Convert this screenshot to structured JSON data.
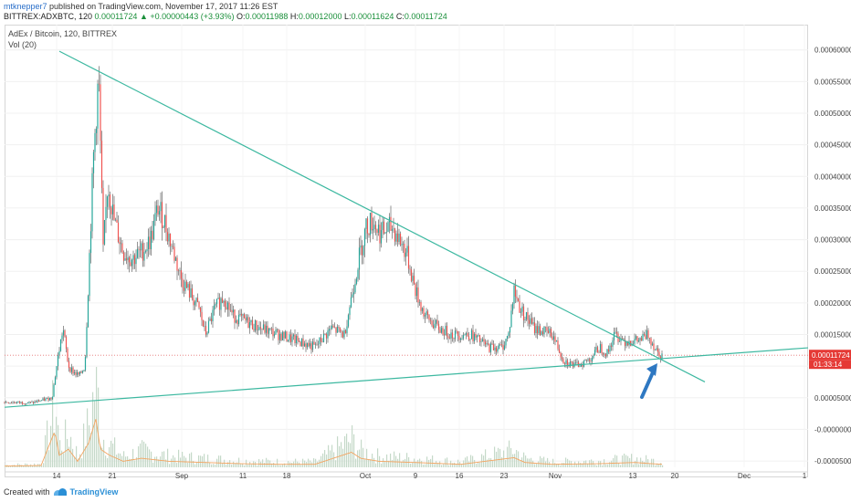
{
  "header": {
    "author": "mtknepper7",
    "published": "published on TradingView.com, November 17, 2017 11:26 EST",
    "symbol": "BITTREX:ADXBTC, 120",
    "last": "0.00011724",
    "change_arrow": "▲",
    "change": "+0.00000443 (+3.93%)",
    "o_label": "O:",
    "o_val": "0.00011988",
    "h_label": "H:",
    "h_val": "0.00012000",
    "l_label": "L:",
    "l_val": "0.00011624",
    "c_label": "C:",
    "c_val": "0.00011724"
  },
  "legend": {
    "title": "AdEx / Bitcoin, 120, BITTREX",
    "vol": "Vol (20)"
  },
  "footer": {
    "created_with": "Created with",
    "brand": "TradingView"
  },
  "colors": {
    "up": "#26a69a",
    "down": "#ef5350",
    "candle": "#4d4d4d",
    "trendline": "#3cb8a0",
    "price_line": "#e57373",
    "arrow": "#2e78c2",
    "volume": "#c5d9c9",
    "ma": "#f4a460"
  },
  "chart_data": {
    "type": "candlestick",
    "title": "AdEx / Bitcoin, 120, BITTREX",
    "x_ticks": [
      "14",
      "21",
      "Sep",
      "11",
      "18",
      "Oct",
      "9",
      "16",
      "23",
      "Nov",
      "13",
      "20",
      "Dec",
      "1"
    ],
    "y_ticks": [
      "0.00060000",
      "0.00055000",
      "0.00050000",
      "0.00045000",
      "0.00040000",
      "0.00035000",
      "0.00030000",
      "0.00025000",
      "0.00020000",
      "0.00015000",
      "0.00010000",
      "0.00005000",
      "-0.00000000",
      "-0.00005000"
    ],
    "ylim": [
      -6e-05,
      0.00064
    ],
    "last_price_label": "0.00011724",
    "countdown_label": "01:33:14",
    "price_path": [
      [
        0,
        4.3e-05
      ],
      [
        30,
        4.2e-05
      ],
      [
        52,
        5e-05
      ],
      [
        58,
        0.00011
      ],
      [
        64,
        0.00016
      ],
      [
        70,
        0.0001
      ],
      [
        76,
        9e-05
      ],
      [
        82,
        8.5e-05
      ],
      [
        88,
        0.0001
      ],
      [
        92,
        0.00024
      ],
      [
        97,
        0.00042
      ],
      [
        103,
        0.00056
      ],
      [
        108,
        0.00028
      ],
      [
        113,
        0.00039
      ],
      [
        120,
        0.00033
      ],
      [
        130,
        0.00028
      ],
      [
        140,
        0.00027
      ],
      [
        150,
        0.00028
      ],
      [
        160,
        0.0003
      ],
      [
        168,
        0.00035
      ],
      [
        175,
        0.00033
      ],
      [
        183,
        0.00029
      ],
      [
        193,
        0.00024
      ],
      [
        205,
        0.00021
      ],
      [
        213,
        0.00019
      ],
      [
        220,
        0.00015
      ],
      [
        230,
        0.00019
      ],
      [
        240,
        0.00021
      ],
      [
        250,
        0.00018
      ],
      [
        265,
        0.00017
      ],
      [
        280,
        0.00016
      ],
      [
        300,
        0.00015
      ],
      [
        320,
        0.00014
      ],
      [
        340,
        0.00013
      ],
      [
        358,
        0.00016
      ],
      [
        372,
        0.00015
      ],
      [
        380,
        0.00021
      ],
      [
        388,
        0.00027
      ],
      [
        396,
        0.00032
      ],
      [
        403,
        0.00033
      ],
      [
        412,
        0.00031
      ],
      [
        425,
        0.00032
      ],
      [
        440,
        0.00028
      ],
      [
        450,
        0.00022
      ],
      [
        460,
        0.00018
      ],
      [
        475,
        0.00016
      ],
      [
        490,
        0.00015
      ],
      [
        510,
        0.00015
      ],
      [
        530,
        0.00013
      ],
      [
        545,
        0.00013
      ],
      [
        552,
        0.00015
      ],
      [
        558,
        0.00022
      ],
      [
        565,
        0.00019
      ],
      [
        580,
        0.00016
      ],
      [
        600,
        0.00015
      ],
      [
        612,
        0.00011
      ],
      [
        625,
        0.0001
      ],
      [
        640,
        0.00011
      ],
      [
        652,
        0.00013
      ],
      [
        660,
        0.00012
      ],
      [
        668,
        0.00015
      ],
      [
        680,
        0.00014
      ],
      [
        695,
        0.00014
      ],
      [
        705,
        0.00015
      ],
      [
        712,
        0.00013
      ],
      [
        720,
        0.000117
      ]
    ],
    "volume_path": [
      [
        0,
        0.2
      ],
      [
        40,
        0.3
      ],
      [
        55,
        6
      ],
      [
        60,
        2
      ],
      [
        70,
        3
      ],
      [
        80,
        1
      ],
      [
        92,
        4
      ],
      [
        100,
        8
      ],
      [
        105,
        3
      ],
      [
        115,
        2
      ],
      [
        130,
        1
      ],
      [
        150,
        1.5
      ],
      [
        180,
        1
      ],
      [
        220,
        0.8
      ],
      [
        260,
        0.6
      ],
      [
        300,
        0.5
      ],
      [
        340,
        0.5
      ],
      [
        380,
        2.5
      ],
      [
        390,
        1.5
      ],
      [
        410,
        1
      ],
      [
        450,
        0.8
      ],
      [
        500,
        0.5
      ],
      [
        558,
        1.6
      ],
      [
        570,
        0.8
      ],
      [
        600,
        0.5
      ],
      [
        650,
        0.6
      ],
      [
        690,
        0.8
      ],
      [
        720,
        0.5
      ]
    ],
    "trendlines": [
      {
        "from": [
          65,
          0.000598
        ],
        "to": [
          772,
          7.5e-05
        ]
      },
      {
        "from": [
          5,
          3.5e-05
        ],
        "to": [
          885,
          0.000129
        ]
      }
    ]
  }
}
